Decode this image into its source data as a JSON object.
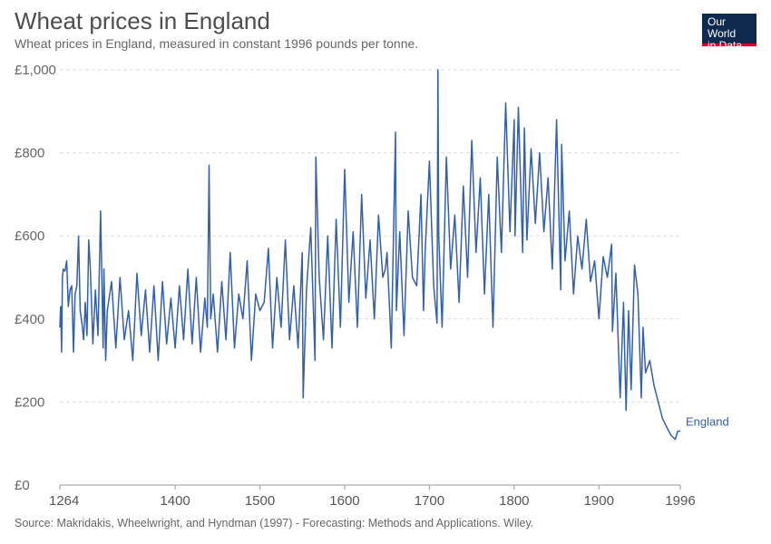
{
  "header": {
    "title": "Wheat prices in England",
    "subtitle": "Wheat prices in England, measured in constant 1996 pounds per tonne."
  },
  "logo": {
    "line1": "Our World",
    "line2": "in Data"
  },
  "footer": {
    "source": "Source: Makridakis, Wheelwright, and Hyndman (1997) - Forecasting: Methods and Applications. Wiley."
  },
  "chart_data": {
    "type": "line",
    "title": "Wheat prices in England",
    "subtitle": "Wheat prices in England, measured in constant 1996 pounds per tonne.",
    "xlabel": "",
    "ylabel": "",
    "xlim": [
      1264,
      1996
    ],
    "ylim": [
      0,
      1000
    ],
    "x_ticks": [
      1264,
      1400,
      1500,
      1600,
      1700,
      1800,
      1900,
      1996
    ],
    "y_ticks": [
      0,
      200,
      400,
      600,
      800,
      1000
    ],
    "y_tick_labels": [
      "£0",
      "£200",
      "£400",
      "£600",
      "£800",
      "£1,000"
    ],
    "grid": "horizontal dashed",
    "line_color": "#3360a9",
    "series": [
      {
        "name": "England",
        "x": [
          1264,
          1265,
          1266,
          1267,
          1268,
          1270,
          1272,
          1274,
          1276,
          1278,
          1280,
          1282,
          1284,
          1286,
          1288,
          1290,
          1292,
          1294,
          1296,
          1298,
          1300,
          1303,
          1306,
          1309,
          1312,
          1315,
          1316,
          1318,
          1320,
          1325,
          1330,
          1335,
          1340,
          1345,
          1350,
          1355,
          1360,
          1365,
          1370,
          1375,
          1380,
          1385,
          1390,
          1395,
          1400,
          1405,
          1410,
          1415,
          1420,
          1425,
          1430,
          1435,
          1438,
          1440,
          1442,
          1445,
          1450,
          1455,
          1460,
          1465,
          1470,
          1475,
          1480,
          1485,
          1490,
          1495,
          1500,
          1505,
          1510,
          1515,
          1520,
          1525,
          1530,
          1535,
          1540,
          1545,
          1550,
          1551,
          1555,
          1560,
          1565,
          1566,
          1570,
          1575,
          1580,
          1585,
          1590,
          1595,
          1600,
          1605,
          1610,
          1615,
          1620,
          1625,
          1630,
          1635,
          1640,
          1645,
          1648,
          1650,
          1655,
          1660,
          1661,
          1665,
          1670,
          1675,
          1680,
          1685,
          1690,
          1693,
          1695,
          1700,
          1705,
          1709,
          1710,
          1711,
          1715,
          1720,
          1725,
          1730,
          1735,
          1740,
          1745,
          1750,
          1755,
          1760,
          1765,
          1770,
          1775,
          1780,
          1785,
          1790,
          1795,
          1800,
          1801,
          1805,
          1810,
          1812,
          1815,
          1820,
          1825,
          1830,
          1835,
          1840,
          1845,
          1850,
          1855,
          1856,
          1860,
          1865,
          1870,
          1875,
          1880,
          1885,
          1890,
          1895,
          1900,
          1905,
          1910,
          1915,
          1916,
          1920,
          1925,
          1929,
          1932,
          1935,
          1938,
          1942,
          1946,
          1950,
          1952,
          1955,
          1960,
          1965,
          1970,
          1975,
          1980,
          1985,
          1990,
          1993,
          1996
        ],
        "values": [
          380,
          430,
          320,
          500,
          520,
          515,
          540,
          430,
          470,
          480,
          320,
          460,
          480,
          600,
          420,
          390,
          350,
          440,
          360,
          590,
          520,
          340,
          470,
          360,
          660,
          330,
          520,
          300,
          420,
          490,
          330,
          500,
          350,
          420,
          300,
          510,
          360,
          470,
          320,
          480,
          300,
          490,
          340,
          450,
          330,
          480,
          350,
          520,
          340,
          500,
          320,
          450,
          380,
          770,
          400,
          460,
          320,
          490,
          350,
          560,
          330,
          460,
          400,
          540,
          300,
          460,
          420,
          440,
          570,
          330,
          500,
          380,
          590,
          350,
          480,
          330,
          560,
          210,
          470,
          620,
          300,
          790,
          500,
          350,
          600,
          330,
          640,
          380,
          760,
          440,
          610,
          380,
          700,
          450,
          590,
          400,
          650,
          500,
          520,
          560,
          330,
          850,
          420,
          610,
          360,
          660,
          500,
          480,
          700,
          420,
          560,
          780,
          480,
          390,
          1000,
          600,
          380,
          790,
          520,
          650,
          440,
          720,
          500,
          830,
          560,
          740,
          460,
          700,
          380,
          790,
          560,
          920,
          610,
          880,
          600,
          910,
          560,
          860,
          590,
          810,
          630,
          800,
          610,
          740,
          520,
          880,
          470,
          820,
          540,
          660,
          460,
          600,
          520,
          640,
          490,
          540,
          400,
          550,
          500,
          580,
          370,
          510,
          210,
          440,
          180,
          420,
          230,
          530,
          460,
          210,
          380,
          270,
          300,
          240,
          200,
          160,
          140,
          120,
          110,
          130,
          130
        ]
      }
    ],
    "end_label": "England"
  }
}
